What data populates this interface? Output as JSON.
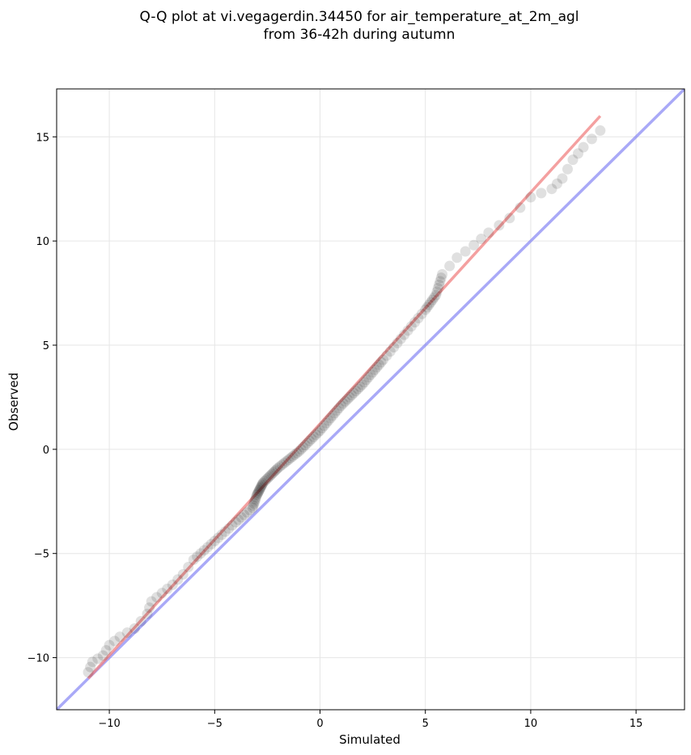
{
  "chart_data": {
    "type": "scatter",
    "title": "Q-Q plot at vi.vegagerdin.34450 for air_temperature_at_2m_agl",
    "subtitle": "from 36-42h during autumn",
    "xlabel": "Simulated",
    "ylabel": "Observed",
    "xlim": [
      -12.5,
      17.3
    ],
    "ylim": [
      -12.5,
      17.3
    ],
    "xticks": [
      -10,
      -5,
      0,
      5,
      10,
      15
    ],
    "yticks": [
      -10,
      -5,
      0,
      5,
      10,
      15
    ],
    "xtick_labels": [
      "−10",
      "−5",
      "0",
      "5",
      "10",
      "15"
    ],
    "ytick_labels": [
      "−10",
      "−5",
      "0",
      "5",
      "10",
      "15"
    ],
    "grid": true,
    "points_anchor": [
      [
        -11.0,
        -10.7
      ],
      [
        -10.8,
        -10.2
      ],
      [
        -10.3,
        -9.9
      ],
      [
        -10.0,
        -9.4
      ],
      [
        -9.5,
        -9.0
      ],
      [
        -8.8,
        -8.6
      ],
      [
        -8.2,
        -7.9
      ],
      [
        -8.0,
        -7.3
      ],
      [
        -7.5,
        -6.9
      ],
      [
        -7.0,
        -6.5
      ],
      [
        -6.5,
        -6.0
      ],
      [
        -6.0,
        -5.3
      ],
      [
        -5.0,
        -4.4
      ],
      [
        -4.0,
        -3.5
      ],
      [
        -3.2,
        -2.8
      ],
      [
        -3.0,
        -2.2
      ],
      [
        -2.7,
        -1.6
      ],
      [
        -2.0,
        -0.9
      ],
      [
        -1.0,
        -0.1
      ],
      [
        0.0,
        0.9
      ],
      [
        1.0,
        2.1
      ],
      [
        2.0,
        3.1
      ],
      [
        3.0,
        4.3
      ],
      [
        4.0,
        5.5
      ],
      [
        5.0,
        6.7
      ],
      [
        5.5,
        7.4
      ],
      [
        5.8,
        8.4
      ],
      [
        6.5,
        9.2
      ],
      [
        7.3,
        9.8
      ],
      [
        8.0,
        10.4
      ],
      [
        9.0,
        11.1
      ],
      [
        10.0,
        12.1
      ],
      [
        11.0,
        12.5
      ],
      [
        11.5,
        13.0
      ],
      [
        12.0,
        13.9
      ],
      [
        12.5,
        14.5
      ],
      [
        13.3,
        15.3
      ]
    ],
    "point_color": "#000000",
    "fit_line": {
      "from": [
        -11.0,
        -11.0
      ],
      "to": [
        13.3,
        16.0
      ],
      "color": "#f08080"
    },
    "identity_line": {
      "from": [
        -12.5,
        -12.5
      ],
      "to": [
        17.3,
        17.3
      ],
      "color": "#7b7bf2"
    }
  }
}
